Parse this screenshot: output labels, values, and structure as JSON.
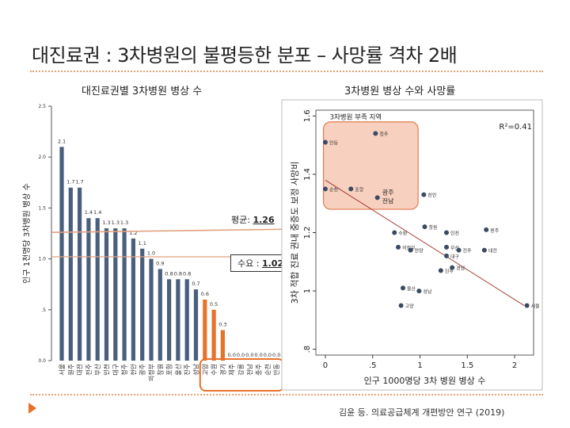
{
  "slide": {
    "title": "대진료권 : 3차병원의 불평등한 분포 – 사망률 격차 2배",
    "source": "김윤 등. 의료공급체계 개편방안 연구 (2019)"
  },
  "colors": {
    "bar": "#4a5f7d",
    "highlight": "#e8722a",
    "avg_line": "#e2a080",
    "supply_line": "#e2a080",
    "trend": "#a33a2f",
    "zone_fill": "#f6c8b4",
    "zone_stroke": "#e07a50"
  },
  "chart_data": [
    {
      "type": "bar",
      "title": "대진료권별 3차병원 병상 수",
      "ylabel": "인구 1천명당 3차병원 병상 수",
      "ylim": [
        0,
        2.5
      ],
      "yticks": [
        "0.0",
        ".5",
        "1.0",
        "1.5",
        "2.0",
        "2.5"
      ],
      "categories": [
        "서울",
        "원주",
        "대전",
        "전주",
        "부산",
        "인천",
        "대구",
        "청주",
        "천안",
        "광주",
        "의정부",
        "창원",
        "포항",
        "울산",
        "진주",
        "성남",
        "고양",
        "수원",
        "경기",
        "제주",
        "강릉",
        "전남",
        "충주",
        "순천",
        "안동"
      ],
      "values": [
        2.1,
        1.7,
        1.7,
        1.4,
        1.4,
        1.3,
        1.3,
        1.3,
        1.2,
        1.1,
        1.0,
        0.9,
        0.8,
        0.8,
        0.8,
        0.7,
        0.6,
        0.5,
        0.3,
        0.0,
        0.0,
        0.0,
        0.0,
        0.0,
        0.0
      ],
      "value_labels": [
        "2.1",
        "1.7",
        "1.7",
        "1.4",
        "1.4",
        "1.3",
        "1.3",
        "1.3",
        "1.2",
        "1.1",
        "1.0",
        "0.9",
        "0.8",
        "0.8",
        "0.8",
        "0.7",
        "0.6",
        "0.5",
        "0.3",
        "0.0",
        "0.0",
        "0.0",
        "0.0",
        "0.0",
        "0.0"
      ],
      "highlight_from_index": 16,
      "reference_lines": [
        {
          "label": "평균: ",
          "value_text": "1.26",
          "value": 1.26
        },
        {
          "label": "수요 : ",
          "value_text": "1.02",
          "value": 1.02
        }
      ]
    },
    {
      "type": "scatter",
      "title": "3차병원 병상 수와 사망률",
      "xlabel": "인구 1000명당 3차 병원 병상 수",
      "ylabel": "3차 적합 진료 권내 중증도 보정 사망비",
      "xlim": [
        -0.1,
        2.2
      ],
      "ylim": [
        0.78,
        1.62
      ],
      "xticks": [
        "0",
        ".5",
        "1",
        "1.5",
        "2"
      ],
      "yticks": [
        ".8",
        "1",
        "1.2",
        "1.4",
        "1.6"
      ],
      "r2_text": "R²=0.41",
      "zone_label": "3차병원 부족 지역",
      "zone": {
        "x": [
          -0.02,
          0.98
        ],
        "y": [
          1.28,
          1.58
        ]
      },
      "trend": {
        "x": [
          0,
          2.1
        ],
        "y": [
          1.38,
          0.95
        ]
      },
      "points": [
        {
          "name": "안동",
          "x": 0.0,
          "y": 1.51
        },
        {
          "name": "청주",
          "x": 0.53,
          "y": 1.54
        },
        {
          "name": "순천",
          "x": 0.0,
          "y": 1.35
        },
        {
          "name": "포항",
          "x": 0.27,
          "y": 1.35
        },
        {
          "name": "광주 전남",
          "x": 0.55,
          "y": 1.32
        },
        {
          "name": "천안",
          "x": 1.04,
          "y": 1.33
        },
        {
          "name": "수원",
          "x": 0.73,
          "y": 1.2
        },
        {
          "name": "창원",
          "x": 1.05,
          "y": 1.22
        },
        {
          "name": "인천",
          "x": 1.28,
          "y": 1.2
        },
        {
          "name": "원주",
          "x": 1.7,
          "y": 1.21
        },
        {
          "name": "의정부",
          "x": 0.77,
          "y": 1.15
        },
        {
          "name": "안양",
          "x": 0.9,
          "y": 1.14
        },
        {
          "name": "부산",
          "x": 1.28,
          "y": 1.15
        },
        {
          "name": "전주",
          "x": 1.41,
          "y": 1.14
        },
        {
          "name": "대전",
          "x": 1.68,
          "y": 1.14
        },
        {
          "name": "대구",
          "x": 1.28,
          "y": 1.12
        },
        {
          "name": "진주",
          "x": 1.22,
          "y": 1.07
        },
        {
          "name": "경남",
          "x": 1.34,
          "y": 1.08
        },
        {
          "name": "울산",
          "x": 0.82,
          "y": 1.01
        },
        {
          "name": "성남",
          "x": 0.99,
          "y": 1.0
        },
        {
          "name": "고양",
          "x": 0.8,
          "y": 0.95
        },
        {
          "name": "서울",
          "x": 2.13,
          "y": 0.95
        }
      ]
    }
  ]
}
